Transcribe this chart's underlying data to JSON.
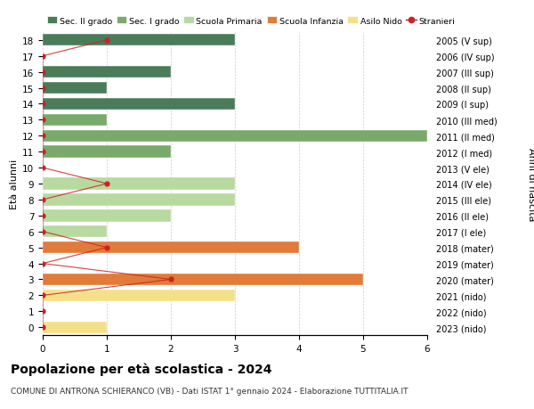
{
  "ages": [
    18,
    17,
    16,
    15,
    14,
    13,
    12,
    11,
    10,
    9,
    8,
    7,
    6,
    5,
    4,
    3,
    2,
    1,
    0
  ],
  "years": [
    "2005 (V sup)",
    "2006 (IV sup)",
    "2007 (III sup)",
    "2008 (II sup)",
    "2009 (I sup)",
    "2010 (III med)",
    "2011 (II med)",
    "2012 (I med)",
    "2013 (V ele)",
    "2014 (IV ele)",
    "2015 (III ele)",
    "2016 (II ele)",
    "2017 (I ele)",
    "2018 (mater)",
    "2019 (mater)",
    "2020 (mater)",
    "2021 (nido)",
    "2022 (nido)",
    "2023 (nido)"
  ],
  "bar_values": [
    3,
    0,
    2,
    1,
    3,
    1,
    6,
    2,
    0,
    3,
    3,
    2,
    1,
    4,
    0,
    5,
    3,
    0,
    1
  ],
  "bar_colors": [
    "#4a7c59",
    "#4a7c59",
    "#4a7c59",
    "#4a7c59",
    "#4a7c59",
    "#7aaa6b",
    "#7aaa6b",
    "#7aaa6b",
    "#b8d9a0",
    "#b8d9a0",
    "#b8d9a0",
    "#b8d9a0",
    "#b8d9a0",
    "#e07b39",
    "#e07b39",
    "#e07b39",
    "#f5e08a",
    "#f5e08a",
    "#f5e08a"
  ],
  "stranieri_values": [
    1,
    0,
    0,
    0,
    0,
    0,
    0,
    0,
    0,
    1,
    0,
    0,
    0,
    1,
    0,
    2,
    0,
    0,
    0
  ],
  "stranieri_color": "#cc2222",
  "legend_labels": [
    "Sec. II grado",
    "Sec. I grado",
    "Scuola Primaria",
    "Scuola Infanzia",
    "Asilo Nido",
    "Stranieri"
  ],
  "legend_colors": [
    "#4a7c59",
    "#7aaa6b",
    "#b8d9a0",
    "#e07b39",
    "#f5e08a",
    "#cc2222"
  ],
  "ylabel_left": "Età alunni",
  "ylabel_right": "Anni di nascita",
  "title": "Popolazione per età scolastica - 2024",
  "subtitle": "COMUNE DI ANTRONA SCHIERANCO (VB) - Dati ISTAT 1° gennaio 2024 - Elaborazione TUTTITALIA.IT",
  "xlim": [
    0,
    6
  ],
  "xticks": [
    0,
    1,
    2,
    3,
    4,
    5,
    6
  ],
  "background_color": "#ffffff",
  "grid_color": "#cccccc"
}
